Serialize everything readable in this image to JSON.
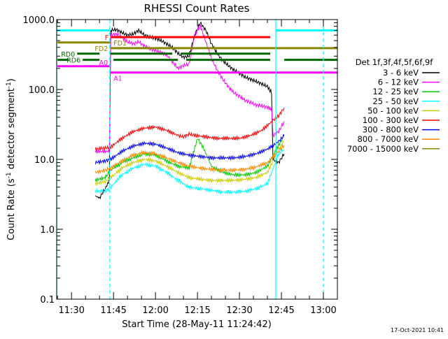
{
  "chart_data": {
    "type": "line",
    "title": "RHESSI Count Rates",
    "xlabel": "Start Time (28-May-11 11:24:42)",
    "ylabel": "Count Rate (s",
    "ylabel_sup1": "-1",
    "ylabel_mid": " detector segment",
    "ylabel_sup2": "-1",
    "ylabel_end": ")",
    "yscale": "log",
    "ylim": [
      0.1,
      1000
    ],
    "xlim": [
      "11:24:42",
      "13:05:00"
    ],
    "x_ticks": [
      "11:30",
      "11:45",
      "12:00",
      "12:15",
      "12:30",
      "12:45",
      "13:00"
    ],
    "y_ticks": [
      "0.1",
      "1.0",
      "10.0",
      "100.0",
      "1000.0"
    ],
    "date_stamp": "17-Oct-2021 10:41",
    "legend": {
      "placement": "right",
      "header": "Det 1f,3f,4f,5f,6f,9f",
      "entries": [
        {
          "label": "3 - 6 keV",
          "color": "#000000"
        },
        {
          "label": "6 - 12 keV",
          "color": "#ff00ff"
        },
        {
          "label": "12 - 25 keV",
          "color": "#00cc00"
        },
        {
          "label": "25 - 50 keV",
          "color": "#00ffff"
        },
        {
          "label": "50 - 100 keV",
          "color": "#cccc00"
        },
        {
          "label": "100 - 300 keV",
          "color": "#ff0000"
        },
        {
          "label": "300 - 800 keV",
          "color": "#0000ff"
        },
        {
          "label": "800 - 7000 keV",
          "color": "#ff8800"
        },
        {
          "label": "7000 - 15000 keV",
          "color": "#888800"
        }
      ]
    },
    "flag_bars": [
      {
        "label": "F",
        "color": "#ff0000",
        "level": 560,
        "segments": [
          [
            "11:44",
            "12:41"
          ]
        ]
      },
      {
        "label": "FD1",
        "color": "#888800",
        "level": 470,
        "segments": [
          [
            "11:25",
            "11:44"
          ]
        ]
      },
      {
        "label": "FD2",
        "color": "#888800",
        "level": 390,
        "segments": [
          [
            "11:44",
            "13:05"
          ]
        ]
      },
      {
        "label": "RD0",
        "color": "#006600",
        "level": 325,
        "segments": [
          [
            "11:32",
            "11:40"
          ],
          [
            "11:44",
            "12:06"
          ],
          [
            "12:09",
            "12:41"
          ]
        ]
      },
      {
        "label": "RD6",
        "color": "#006600",
        "level": 265,
        "segments": [
          [
            "11:25",
            "11:29"
          ],
          [
            "11:34",
            "11:40"
          ],
          [
            "11:45",
            "12:08"
          ],
          [
            "12:11",
            "12:41"
          ],
          [
            "12:46",
            "13:05"
          ]
        ]
      },
      {
        "label": "A0",
        "color": "#ff00ff",
        "level": 215,
        "segments": [
          [
            "11:25",
            "11:44"
          ]
        ]
      },
      {
        "label": "A1",
        "color": "#ff00ff",
        "level": 175,
        "segments": [
          [
            "11:44",
            "13:05"
          ]
        ]
      }
    ],
    "vlines": [
      {
        "x": "11:24:42",
        "color": "#00ffff",
        "style": "solid"
      },
      {
        "x": "11:43:40",
        "color": "#00ffff",
        "style": "dashed"
      },
      {
        "x": "12:43:00",
        "color": "#00ffff",
        "style": "solid"
      },
      {
        "x": "13:00:00",
        "color": "#00ffff",
        "style": "dashed"
      }
    ],
    "cyan_top_bars": [
      {
        "segments": [
          [
            "11:24:42",
            "11:43:40"
          ],
          [
            "12:43:00",
            "13:05"
          ]
        ],
        "level": 700
      }
    ],
    "series": [
      {
        "name": "3 - 6 keV",
        "color": "#000000",
        "points": [
          [
            "11:38.5",
            3.0
          ],
          [
            "11:40",
            2.8
          ],
          [
            "11:42",
            3.8
          ],
          [
            "11:43.5",
            5.0
          ],
          [
            "11:44",
            700
          ],
          [
            "11:46",
            720
          ],
          [
            "11:48",
            650
          ],
          [
            "11:50",
            600
          ],
          [
            "11:52",
            620
          ],
          [
            "11:54",
            700
          ],
          [
            "11:56",
            600
          ],
          [
            "11:58",
            560
          ],
          [
            "12:00",
            540
          ],
          [
            "12:02",
            500
          ],
          [
            "12:04",
            450
          ],
          [
            "12:06",
            400
          ],
          [
            "12:08",
            330
          ],
          [
            "12:10",
            290
          ],
          [
            "12:12",
            300
          ],
          [
            "12:14",
            600
          ],
          [
            "12:16",
            900
          ],
          [
            "12:18",
            700
          ],
          [
            "12:20",
            450
          ],
          [
            "12:22",
            330
          ],
          [
            "12:24",
            260
          ],
          [
            "12:26",
            220
          ],
          [
            "12:28",
            190
          ],
          [
            "12:30",
            170
          ],
          [
            "12:32",
            150
          ],
          [
            "12:34",
            140
          ],
          [
            "12:36",
            130
          ],
          [
            "12:38",
            120
          ],
          [
            "12:40",
            110
          ],
          [
            "12:41.5",
            90
          ],
          [
            "12:42",
            10
          ],
          [
            "12:44",
            9
          ],
          [
            "12:46",
            12
          ]
        ]
      },
      {
        "name": "6 - 12 keV",
        "color": "#ff00ff",
        "points": [
          [
            "11:38.5",
            13
          ],
          [
            "11:43.5",
            13
          ],
          [
            "11:44",
            600
          ],
          [
            "11:46",
            620
          ],
          [
            "11:48",
            560
          ],
          [
            "11:50",
            480
          ],
          [
            "11:52",
            450
          ],
          [
            "11:54",
            480
          ],
          [
            "11:56",
            420
          ],
          [
            "11:58",
            380
          ],
          [
            "12:00",
            360
          ],
          [
            "12:02",
            340
          ],
          [
            "12:04",
            310
          ],
          [
            "12:06",
            250
          ],
          [
            "12:08",
            200
          ],
          [
            "12:10",
            220
          ],
          [
            "12:12",
            230
          ],
          [
            "12:14",
            600
          ],
          [
            "12:16",
            820
          ],
          [
            "12:18",
            480
          ],
          [
            "12:20",
            280
          ],
          [
            "12:22",
            190
          ],
          [
            "12:24",
            140
          ],
          [
            "12:26",
            110
          ],
          [
            "12:28",
            90
          ],
          [
            "12:30",
            80
          ],
          [
            "12:32",
            70
          ],
          [
            "12:34",
            65
          ],
          [
            "12:36",
            60
          ],
          [
            "12:38",
            58
          ],
          [
            "12:40",
            56
          ],
          [
            "12:41.5",
            52
          ],
          [
            "12:42",
            22
          ],
          [
            "12:44",
            25
          ],
          [
            "12:46",
            35
          ]
        ]
      },
      {
        "name": "12 - 25 keV",
        "color": "#00cc00",
        "points": [
          [
            "11:38.5",
            5.0
          ],
          [
            "11:42",
            5.5
          ],
          [
            "11:44",
            7.0
          ],
          [
            "11:48",
            9.0
          ],
          [
            "11:52",
            10.5
          ],
          [
            "11:56",
            12.0
          ],
          [
            "12:00",
            11.5
          ],
          [
            "12:04",
            9.5
          ],
          [
            "12:08",
            8.0
          ],
          [
            "12:12",
            7.5
          ],
          [
            "12:15",
            20.0
          ],
          [
            "12:17",
            15.0
          ],
          [
            "12:20",
            8.0
          ],
          [
            "12:24",
            6.5
          ],
          [
            "12:28",
            6.0
          ],
          [
            "12:32",
            6.0
          ],
          [
            "12:36",
            6.5
          ],
          [
            "12:40",
            8.0
          ],
          [
            "12:44",
            16.0
          ],
          [
            "12:46",
            22.0
          ]
        ]
      },
      {
        "name": "25 - 50 keV",
        "color": "#00ffff",
        "points": [
          [
            "11:38.5",
            3.5
          ],
          [
            "11:42",
            3.5
          ],
          [
            "11:44",
            4.0
          ],
          [
            "11:48",
            6.0
          ],
          [
            "11:52",
            7.5
          ],
          [
            "11:56",
            8.5
          ],
          [
            "12:00",
            8.0
          ],
          [
            "12:04",
            6.5
          ],
          [
            "12:08",
            5.0
          ],
          [
            "12:12",
            4.0
          ],
          [
            "12:16",
            3.8
          ],
          [
            "12:20",
            3.6
          ],
          [
            "12:24",
            3.4
          ],
          [
            "12:28",
            3.4
          ],
          [
            "12:32",
            3.5
          ],
          [
            "12:36",
            3.8
          ],
          [
            "12:40",
            4.5
          ],
          [
            "12:44",
            12.0
          ],
          [
            "12:46",
            14.0
          ]
        ]
      },
      {
        "name": "50 - 100 keV",
        "color": "#cccc00",
        "points": [
          [
            "11:38.5",
            4.5
          ],
          [
            "11:42",
            4.8
          ],
          [
            "11:44",
            5.5
          ],
          [
            "11:48",
            7.5
          ],
          [
            "11:52",
            9.0
          ],
          [
            "11:56",
            10.0
          ],
          [
            "12:00",
            9.5
          ],
          [
            "12:04",
            8.0
          ],
          [
            "12:08",
            6.5
          ],
          [
            "12:12",
            5.5
          ],
          [
            "12:16",
            5.2
          ],
          [
            "12:20",
            5.0
          ],
          [
            "12:24",
            5.0
          ],
          [
            "12:28",
            5.0
          ],
          [
            "12:32",
            5.2
          ],
          [
            "12:36",
            5.5
          ],
          [
            "12:40",
            6.5
          ],
          [
            "12:44",
            14.0
          ],
          [
            "12:46",
            18.0
          ]
        ]
      },
      {
        "name": "100 - 300 keV",
        "color": "#ff0000",
        "points": [
          [
            "11:38.5",
            14
          ],
          [
            "11:42",
            14.5
          ],
          [
            "11:44",
            15
          ],
          [
            "11:48",
            20
          ],
          [
            "11:52",
            25
          ],
          [
            "11:56",
            28
          ],
          [
            "12:00",
            29
          ],
          [
            "12:04",
            26
          ],
          [
            "12:08",
            22
          ],
          [
            "12:10",
            21
          ],
          [
            "12:12",
            23
          ],
          [
            "12:14",
            22
          ],
          [
            "12:18",
            21
          ],
          [
            "12:22",
            20
          ],
          [
            "12:26",
            20
          ],
          [
            "12:30",
            20
          ],
          [
            "12:34",
            22
          ],
          [
            "12:38",
            26
          ],
          [
            "12:42",
            36
          ],
          [
            "12:44",
            42
          ],
          [
            "12:46",
            55
          ]
        ]
      },
      {
        "name": "300 - 800 keV",
        "color": "#0000ff",
        "points": [
          [
            "11:38.5",
            9
          ],
          [
            "11:42",
            9.5
          ],
          [
            "11:44",
            10
          ],
          [
            "11:48",
            13
          ],
          [
            "11:52",
            15.5
          ],
          [
            "11:56",
            17
          ],
          [
            "12:00",
            16.5
          ],
          [
            "12:04",
            14.5
          ],
          [
            "12:08",
            12.5
          ],
          [
            "12:12",
            11.5
          ],
          [
            "12:16",
            11
          ],
          [
            "12:20",
            10.5
          ],
          [
            "12:24",
            10.5
          ],
          [
            "12:28",
            10.5
          ],
          [
            "12:32",
            11
          ],
          [
            "12:36",
            12
          ],
          [
            "12:40",
            14
          ],
          [
            "12:44",
            18
          ],
          [
            "12:46",
            22
          ]
        ]
      },
      {
        "name": "800 - 7000 keV",
        "color": "#ff8800",
        "points": [
          [
            "11:38.5",
            6.5
          ],
          [
            "11:42",
            7.0
          ],
          [
            "11:44",
            7.5
          ],
          [
            "11:48",
            9.5
          ],
          [
            "11:52",
            11.5
          ],
          [
            "11:56",
            12.5
          ],
          [
            "12:00",
            12.0
          ],
          [
            "12:04",
            10.5
          ],
          [
            "12:08",
            9.0
          ],
          [
            "12:12",
            8.0
          ],
          [
            "12:16",
            7.5
          ],
          [
            "12:20",
            7.2
          ],
          [
            "12:24",
            7.0
          ],
          [
            "12:28",
            7.0
          ],
          [
            "12:32",
            7.2
          ],
          [
            "12:36",
            7.8
          ],
          [
            "12:40",
            9.0
          ],
          [
            "12:44",
            13.0
          ],
          [
            "12:46",
            16.0
          ]
        ]
      }
    ]
  }
}
